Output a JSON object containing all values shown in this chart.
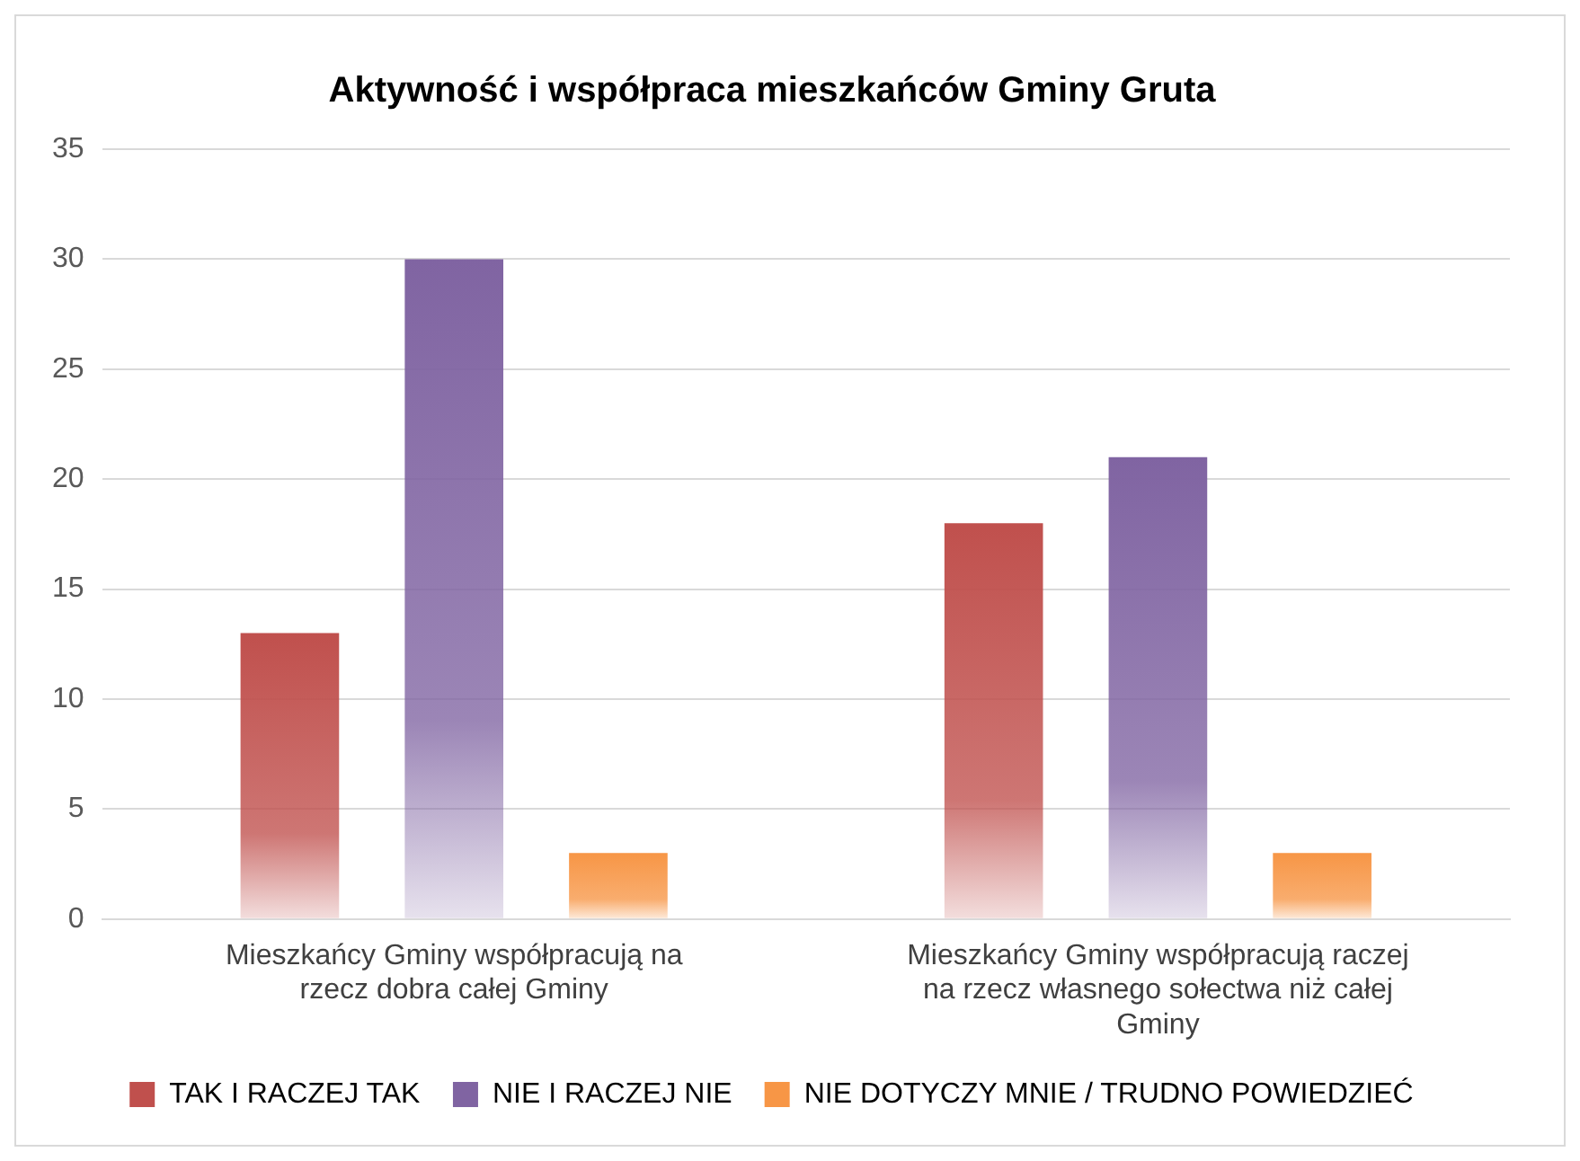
{
  "chart_data": {
    "type": "bar",
    "title": "Aktywność i współpraca mieszkańców Gminy Gruta",
    "categories": [
      "Mieszkańcy Gminy współpracują na rzecz dobra całej Gminy",
      "Mieszkańcy Gminy współpracują raczej na rzecz własnego sołectwa niż całej Gminy"
    ],
    "series": [
      {
        "name": "TAK I RACZEJ TAK",
        "color": "#c0504d",
        "values": [
          13,
          18
        ]
      },
      {
        "name": "NIE I RACZEJ NIE",
        "color": "#8064a2",
        "values": [
          30,
          21
        ]
      },
      {
        "name": "NIE DOTYCZY MNIE / TRUDNO POWIEDZIEĆ",
        "color": "#f79646",
        "values": [
          3,
          3
        ]
      }
    ],
    "ylim": [
      0,
      35
    ],
    "yticks": [
      0,
      5,
      10,
      15,
      20,
      25,
      30,
      35
    ],
    "grid": "y",
    "legend": "bottom"
  }
}
